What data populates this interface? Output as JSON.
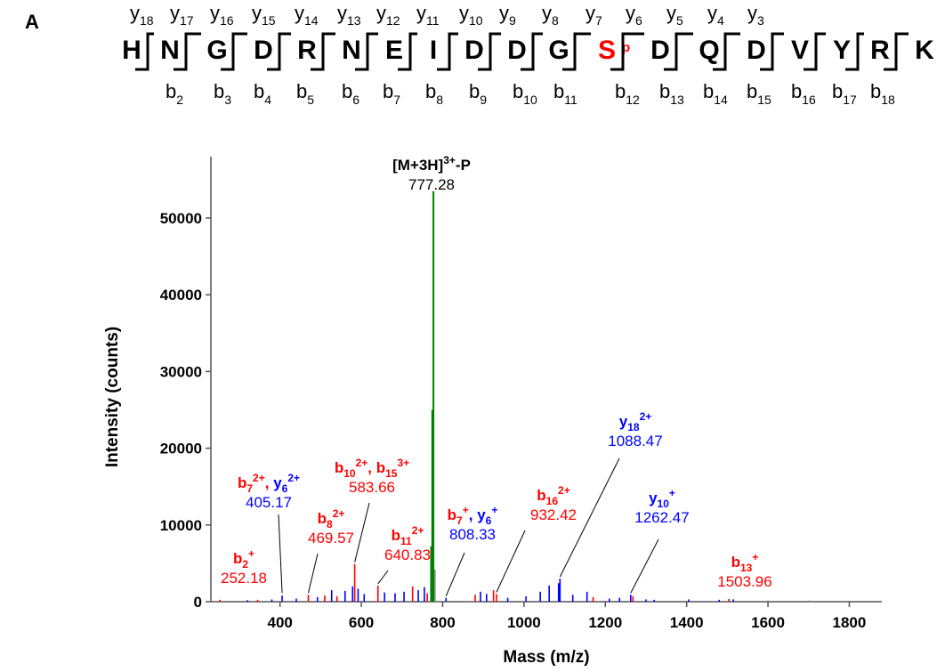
{
  "panel_label": "A",
  "sequence": {
    "residues": [
      "H",
      "N",
      "G",
      "D",
      "R",
      "N",
      "E",
      "I",
      "D",
      "D",
      "G",
      "S",
      "D",
      "Q",
      "D",
      "V",
      "Y",
      "R",
      "K"
    ],
    "phospho_index": 11,
    "phospho_mark": "p",
    "y_ions": [
      {
        "base": "y",
        "sub": "18"
      },
      {
        "base": "y",
        "sub": "17"
      },
      {
        "base": "y",
        "sub": "16"
      },
      {
        "base": "y",
        "sub": "15"
      },
      {
        "base": "y",
        "sub": "14"
      },
      {
        "base": "y",
        "sub": "13"
      },
      {
        "base": "y",
        "sub": "12"
      },
      {
        "base": "y",
        "sub": "11"
      },
      {
        "base": "y",
        "sub": "10"
      },
      {
        "base": "y",
        "sub": "9"
      },
      {
        "base": "y",
        "sub": "8"
      },
      {
        "base": "y",
        "sub": "7"
      },
      {
        "base": "y",
        "sub": "6"
      },
      {
        "base": "y",
        "sub": "5"
      },
      {
        "base": "y",
        "sub": "4"
      },
      {
        "base": "y",
        "sub": "3"
      }
    ],
    "b_ions": [
      {
        "base": "b",
        "sub": "2"
      },
      {
        "base": "b",
        "sub": "3"
      },
      {
        "base": "b",
        "sub": "4"
      },
      {
        "base": "b",
        "sub": "5"
      },
      {
        "base": "b",
        "sub": "6"
      },
      {
        "base": "b",
        "sub": "7"
      },
      {
        "base": "b",
        "sub": "8"
      },
      {
        "base": "b",
        "sub": "9"
      },
      {
        "base": "b",
        "sub": "10"
      },
      {
        "base": "b",
        "sub": "11"
      },
      {
        "base": "b",
        "sub": "12"
      },
      {
        "base": "b",
        "sub": "13"
      },
      {
        "base": "b",
        "sub": "14"
      },
      {
        "base": "b",
        "sub": "15"
      },
      {
        "base": "b",
        "sub": "16"
      },
      {
        "base": "b",
        "sub": "17"
      },
      {
        "base": "b",
        "sub": "18"
      }
    ]
  },
  "chart_data": {
    "type": "bar",
    "title": "",
    "xlabel": "Mass (m/z)",
    "ylabel": "Intensity (counts)",
    "xlim": [
      230,
      1880
    ],
    "ylim": [
      0,
      58000
    ],
    "x_ticks": [
      "400",
      "600",
      "800",
      "1000",
      "1200",
      "1400",
      "1600",
      "1800"
    ],
    "y_ticks": [
      "0",
      "10000",
      "20000",
      "30000",
      "40000",
      "50000"
    ],
    "grid": false,
    "legend": "none",
    "colors": {
      "b_ion": "#ff0000",
      "y_ion": "#0000ff",
      "precursor": "#008000"
    },
    "peaks": [
      {
        "mz": 777.28,
        "intensity": 53500,
        "color": "green"
      },
      {
        "mz": 774.5,
        "intensity": 25000,
        "color": "green"
      },
      {
        "mz": 771.5,
        "intensity": 7200,
        "color": "green"
      },
      {
        "mz": 781.0,
        "intensity": 4200,
        "color": "gray"
      },
      {
        "mz": 583.66,
        "intensity": 4900,
        "color": "red"
      },
      {
        "mz": 578.5,
        "intensity": 2000,
        "color": "blue"
      },
      {
        "mz": 640.83,
        "intensity": 2100,
        "color": "red"
      },
      {
        "mz": 1088.47,
        "intensity": 3000,
        "color": "blue"
      },
      {
        "mz": 1085.0,
        "intensity": 2400,
        "color": "blue"
      },
      {
        "mz": 1062.0,
        "intensity": 2100,
        "color": "blue"
      },
      {
        "mz": 1155.0,
        "intensity": 1300,
        "color": "blue"
      },
      {
        "mz": 1262.47,
        "intensity": 900,
        "color": "blue"
      },
      {
        "mz": 1268.0,
        "intensity": 700,
        "color": "red"
      },
      {
        "mz": 932.42,
        "intensity": 1000,
        "color": "red"
      },
      {
        "mz": 925.0,
        "intensity": 1500,
        "color": "red"
      },
      {
        "mz": 405.17,
        "intensity": 800,
        "color": "blue"
      },
      {
        "mz": 469.57,
        "intensity": 900,
        "color": "red"
      },
      {
        "mz": 252.18,
        "intensity": 250,
        "color": "red"
      },
      {
        "mz": 808.33,
        "intensity": 500,
        "color": "blue"
      },
      {
        "mz": 1503.96,
        "intensity": 350,
        "color": "red"
      },
      {
        "mz": 527.0,
        "intensity": 1500,
        "color": "blue"
      },
      {
        "mz": 560.0,
        "intensity": 1400,
        "color": "blue"
      },
      {
        "mz": 592.0,
        "intensity": 1700,
        "color": "blue"
      },
      {
        "mz": 607.0,
        "intensity": 1000,
        "color": "blue"
      },
      {
        "mz": 657.0,
        "intensity": 1200,
        "color": "blue"
      },
      {
        "mz": 683.0,
        "intensity": 1100,
        "color": "blue"
      },
      {
        "mz": 705.0,
        "intensity": 1300,
        "color": "blue"
      },
      {
        "mz": 726.0,
        "intensity": 2000,
        "color": "red"
      },
      {
        "mz": 740.0,
        "intensity": 1500,
        "color": "blue"
      },
      {
        "mz": 755.0,
        "intensity": 1900,
        "color": "blue"
      },
      {
        "mz": 762.0,
        "intensity": 1100,
        "color": "red"
      },
      {
        "mz": 880.0,
        "intensity": 900,
        "color": "red"
      },
      {
        "mz": 893.0,
        "intensity": 1300,
        "color": "blue"
      },
      {
        "mz": 908.0,
        "intensity": 1000,
        "color": "blue"
      },
      {
        "mz": 960.0,
        "intensity": 500,
        "color": "blue"
      },
      {
        "mz": 1005.0,
        "intensity": 700,
        "color": "blue"
      },
      {
        "mz": 1040.0,
        "intensity": 1300,
        "color": "blue"
      },
      {
        "mz": 1120.0,
        "intensity": 900,
        "color": "blue"
      },
      {
        "mz": 1170.0,
        "intensity": 600,
        "color": "red"
      },
      {
        "mz": 1210.0,
        "intensity": 400,
        "color": "blue"
      },
      {
        "mz": 1235.0,
        "intensity": 500,
        "color": "blue"
      },
      {
        "mz": 1300.0,
        "intensity": 300,
        "color": "blue"
      },
      {
        "mz": 1320.0,
        "intensity": 250,
        "color": "blue"
      },
      {
        "mz": 1405.0,
        "intensity": 300,
        "color": "blue"
      },
      {
        "mz": 1480.0,
        "intensity": 250,
        "color": "blue"
      },
      {
        "mz": 1515.0,
        "intensity": 300,
        "color": "blue"
      },
      {
        "mz": 1600.0,
        "intensity": 150,
        "color": "gray"
      },
      {
        "mz": 1700.0,
        "intensity": 150,
        "color": "gray"
      },
      {
        "mz": 1780.0,
        "intensity": 120,
        "color": "gray"
      },
      {
        "mz": 320.0,
        "intensity": 200,
        "color": "blue"
      },
      {
        "mz": 345.0,
        "intensity": 250,
        "color": "red"
      },
      {
        "mz": 380.0,
        "intensity": 300,
        "color": "blue"
      },
      {
        "mz": 440.0,
        "intensity": 400,
        "color": "blue"
      },
      {
        "mz": 492.0,
        "intensity": 600,
        "color": "blue"
      },
      {
        "mz": 510.0,
        "intensity": 800,
        "color": "red"
      },
      {
        "mz": 540.0,
        "intensity": 700,
        "color": "red"
      }
    ],
    "annotations": [
      {
        "id": "precursor",
        "lines": [
          [
            {
              "t": "[M+3H]",
              "c": "black"
            },
            {
              "t": "3+",
              "c": "black",
              "sup": true
            },
            {
              "t": "-P",
              "c": "black"
            }
          ],
          [
            {
              "t": "777.28",
              "c": "black"
            }
          ]
        ]
      },
      {
        "id": "b2",
        "lines": [
          [
            {
              "t": "b",
              "c": "red"
            },
            {
              "t": "2",
              "c": "red",
              "sub": true
            },
            {
              "t": "+",
              "c": "red",
              "sup": true
            }
          ],
          [
            {
              "t": "252.18",
              "c": "red"
            }
          ]
        ]
      },
      {
        "id": "b7-y6",
        "lines": [
          [
            {
              "t": "b",
              "c": "red"
            },
            {
              "t": "7",
              "c": "red",
              "sub": true
            },
            {
              "t": "2+",
              "c": "red",
              "sup": true
            },
            {
              "t": ", ",
              "c": "red"
            },
            {
              "t": "y",
              "c": "blue"
            },
            {
              "t": "6",
              "c": "blue",
              "sub": true
            },
            {
              "t": "2+",
              "c": "blue",
              "sup": true
            }
          ],
          [
            {
              "t": "405.17",
              "c": "blue"
            }
          ]
        ]
      },
      {
        "id": "b8",
        "lines": [
          [
            {
              "t": "b",
              "c": "red"
            },
            {
              "t": "8",
              "c": "red",
              "sub": true
            },
            {
              "t": "2+",
              "c": "red",
              "sup": true
            }
          ],
          [
            {
              "t": "469.57",
              "c": "red"
            }
          ]
        ]
      },
      {
        "id": "b10-b15",
        "lines": [
          [
            {
              "t": "b",
              "c": "red"
            },
            {
              "t": "10",
              "c": "red",
              "sub": true
            },
            {
              "t": "2+",
              "c": "red",
              "sup": true
            },
            {
              "t": ", ",
              "c": "red"
            },
            {
              "t": "b",
              "c": "red"
            },
            {
              "t": "15",
              "c": "red",
              "sub": true
            },
            {
              "t": "3+",
              "c": "red",
              "sup": true
            }
          ],
          [
            {
              "t": "583.66",
              "c": "red"
            }
          ]
        ]
      },
      {
        "id": "b11",
        "lines": [
          [
            {
              "t": "b",
              "c": "red"
            },
            {
              "t": "11",
              "c": "red",
              "sub": true
            },
            {
              "t": "2+",
              "c": "red",
              "sup": true
            }
          ],
          [
            {
              "t": "640.83",
              "c": "red"
            }
          ]
        ]
      },
      {
        "id": "b7y6-plus",
        "lines": [
          [
            {
              "t": "b",
              "c": "red"
            },
            {
              "t": "7",
              "c": "red",
              "sub": true
            },
            {
              "t": "+",
              "c": "red",
              "sup": true
            },
            {
              "t": ", ",
              "c": "blue"
            },
            {
              "t": "y",
              "c": "blue"
            },
            {
              "t": "6",
              "c": "blue",
              "sub": true
            },
            {
              "t": "+",
              "c": "blue",
              "sup": true
            }
          ],
          [
            {
              "t": "808.33",
              "c": "blue"
            }
          ]
        ]
      },
      {
        "id": "b16",
        "lines": [
          [
            {
              "t": "b",
              "c": "red"
            },
            {
              "t": "16",
              "c": "red",
              "sub": true
            },
            {
              "t": "2+",
              "c": "red",
              "sup": true
            }
          ],
          [
            {
              "t": "932.42",
              "c": "red"
            }
          ]
        ]
      },
      {
        "id": "y18",
        "lines": [
          [
            {
              "t": "y",
              "c": "blue"
            },
            {
              "t": "18",
              "c": "blue",
              "sub": true
            },
            {
              "t": "2+",
              "c": "blue",
              "sup": true
            }
          ],
          [
            {
              "t": "1088.47",
              "c": "blue"
            }
          ]
        ]
      },
      {
        "id": "y10",
        "lines": [
          [
            {
              "t": "y",
              "c": "blue"
            },
            {
              "t": "10",
              "c": "blue",
              "sub": true
            },
            {
              "t": "+",
              "c": "blue",
              "sup": true
            }
          ],
          [
            {
              "t": "1262.47",
              "c": "blue"
            }
          ]
        ]
      },
      {
        "id": "b13",
        "lines": [
          [
            {
              "t": "b",
              "c": "red"
            },
            {
              "t": "13",
              "c": "red",
              "sub": true
            },
            {
              "t": "+",
              "c": "red",
              "sup": true
            }
          ],
          [
            {
              "t": "1503.96",
              "c": "red"
            }
          ]
        ]
      }
    ]
  }
}
